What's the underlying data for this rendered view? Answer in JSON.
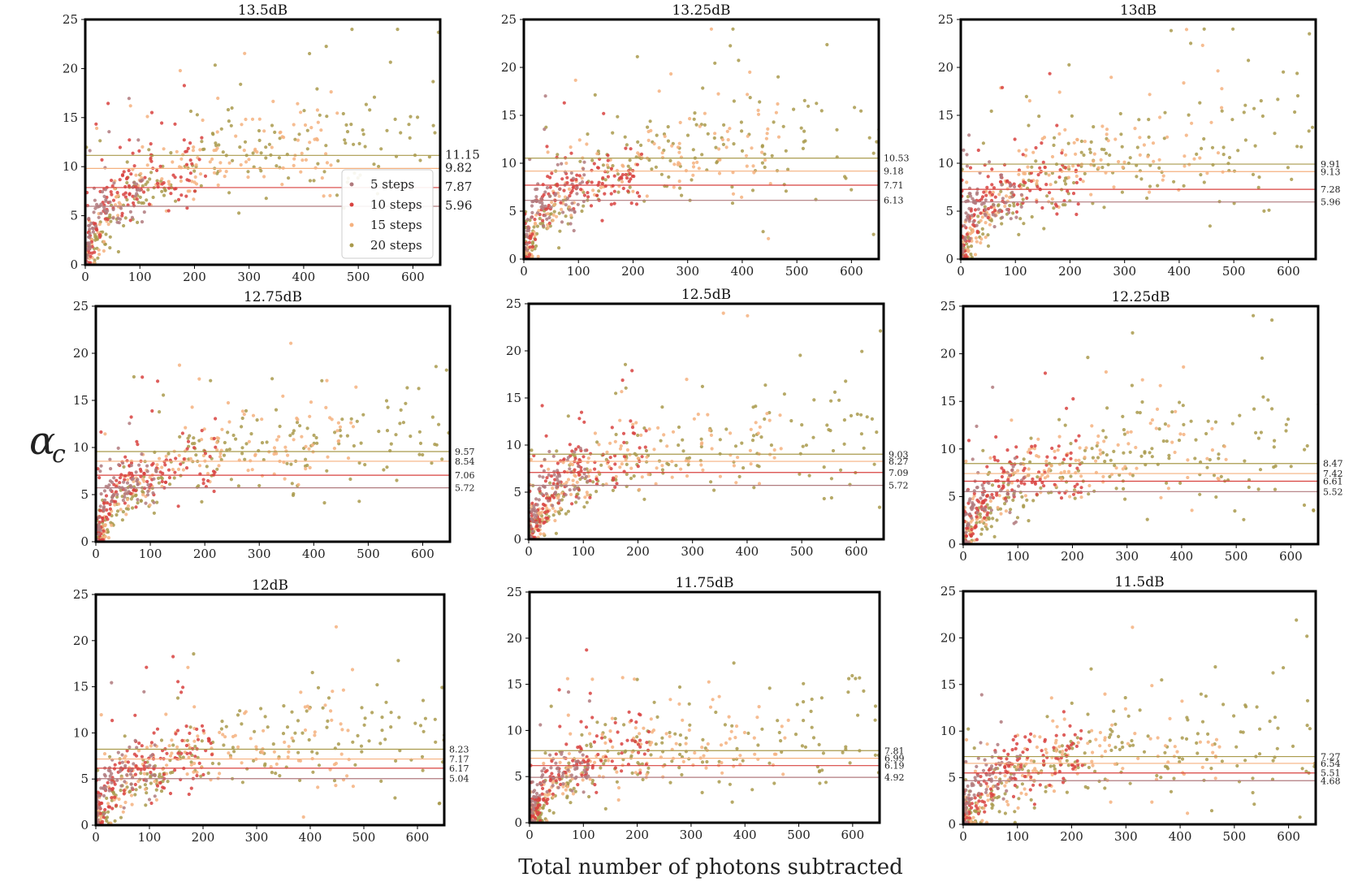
{
  "chart_data": {
    "type": "scatter",
    "xlabel": "Total number of photons subtracted",
    "ylabel": "α",
    "ylabel_subscript": "c",
    "xlim": [
      0,
      650
    ],
    "ylim": [
      0,
      25
    ],
    "xticks": [
      0,
      100,
      200,
      300,
      400,
      500,
      600
    ],
    "yticks": [
      0,
      5,
      10,
      15,
      20,
      25
    ],
    "series": [
      {
        "name": "5 steps",
        "color": "#b07a7e"
      },
      {
        "name": "10 steps",
        "color": "#d8423f"
      },
      {
        "name": "15 steps",
        "color": "#f5b17f"
      },
      {
        "name": "20 steps",
        "color": "#a99a4c"
      }
    ],
    "line_colors": [
      "#b07a7e",
      "#d8423f",
      "#f5b17f",
      "#a99a4c"
    ],
    "panels": [
      {
        "title": "13.5dB",
        "thresholds": [
          5.96,
          7.87,
          9.82,
          11.15
        ],
        "labels": [
          "5.96",
          "7.87",
          "9.82",
          "11.15"
        ],
        "legend": true
      },
      {
        "title": "13.25dB",
        "thresholds": [
          6.13,
          7.71,
          9.18,
          10.53
        ],
        "labels": [
          "6.13",
          "7.71",
          "9.18",
          "10.53"
        ],
        "legend": false
      },
      {
        "title": "13dB",
        "thresholds": [
          5.96,
          7.28,
          9.13,
          9.91
        ],
        "labels": [
          "5.96",
          "7.28",
          "9.13",
          "9.91"
        ],
        "legend": false
      },
      {
        "title": "12.75dB",
        "thresholds": [
          5.72,
          7.06,
          8.54,
          9.57
        ],
        "labels": [
          "5.72",
          "7.06",
          "8.54",
          "9.57"
        ],
        "legend": false
      },
      {
        "title": "12.5dB",
        "thresholds": [
          5.72,
          7.09,
          8.27,
          9.03
        ],
        "labels": [
          "5.72",
          "7.09",
          "8.27",
          "9.03"
        ],
        "legend": false
      },
      {
        "title": "12.25dB",
        "thresholds": [
          5.52,
          6.61,
          7.42,
          8.47
        ],
        "labels": [
          "5.52",
          "6.61",
          "7.42",
          "8.47"
        ],
        "legend": false
      },
      {
        "title": "12dB",
        "thresholds": [
          5.04,
          6.17,
          7.17,
          8.23
        ],
        "labels": [
          "5.04",
          "6.17",
          "7.17",
          "8.23"
        ],
        "legend": false
      },
      {
        "title": "11.75dB",
        "thresholds": [
          4.92,
          6.19,
          6.99,
          7.81
        ],
        "labels": [
          "4.92",
          "6.19",
          "6.99",
          "7.81"
        ],
        "legend": false
      },
      {
        "title": "11.5dB",
        "thresholds": [
          4.68,
          5.51,
          6.54,
          7.27
        ],
        "labels": [
          "4.68",
          "5.51",
          "6.54",
          "7.27"
        ],
        "legend": false
      }
    ]
  }
}
